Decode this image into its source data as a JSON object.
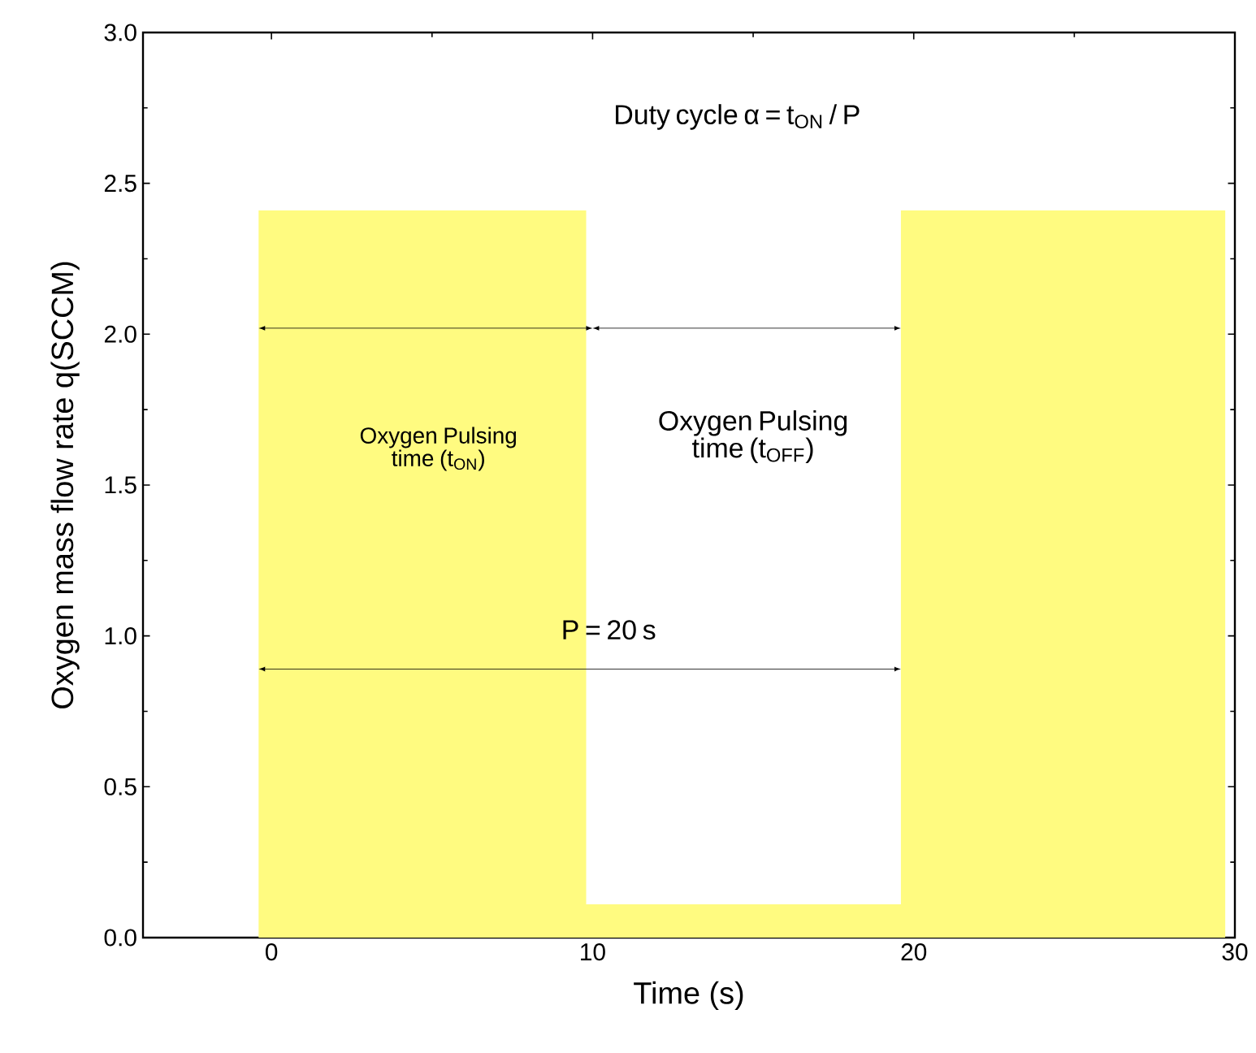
{
  "chart_data": {
    "type": "area",
    "xlabel": "Time (s)",
    "ylabel": "Oxygen mass flow rate q(SCCM)",
    "x": [
      -0.4,
      9.8,
      9.8,
      19.6,
      19.6,
      29.7
    ],
    "values": [
      2.41,
      2.41,
      0.11,
      0.11,
      2.41,
      2.41
    ],
    "color": "#fffb80",
    "xlim": [
      -4,
      30
    ],
    "ylim": [
      0,
      3
    ],
    "xticks": [
      0,
      10,
      20,
      30
    ],
    "yticks": [
      {
        "value": 0,
        "label": "0.0"
      },
      {
        "value": 0.5,
        "label": "0.5"
      },
      {
        "value": 1,
        "label": "1.0"
      },
      {
        "value": 1.5,
        "label": "1.5"
      },
      {
        "value": 2,
        "label": "2.0"
      },
      {
        "value": 2.5,
        "label": "2.5"
      },
      {
        "value": 3,
        "label": "3.0"
      }
    ],
    "annotations": [
      "Duty cycle α = t$_{ON}$ / P",
      "Oxygen Pulsing time (t$_{ON}$)",
      "Oxygen Pulsing time (t$_{OFF}$)",
      "P = 20 s"
    ],
    "grid": false
  }
}
